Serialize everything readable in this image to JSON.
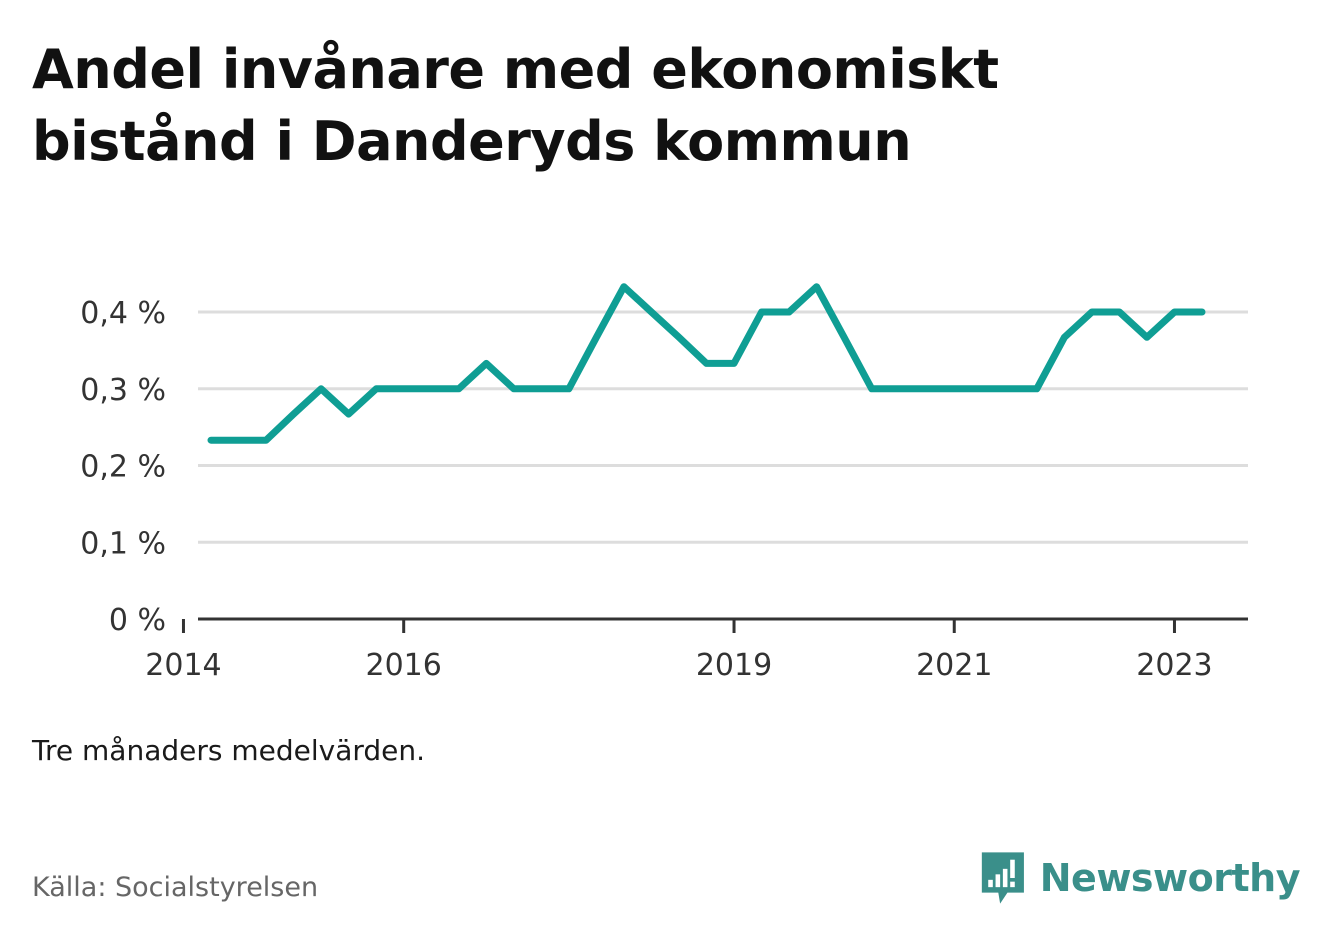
{
  "title": "Andel invånare med ekonomiskt bistånd i Danderyds kommun",
  "note": "Tre månaders medelvärden.",
  "source": "Källa: Socialstyrelsen",
  "brand": {
    "name": "Newsworthy"
  },
  "colors": {
    "line": "#0f9e94",
    "grid": "#dddddd",
    "axis": "#333333",
    "brand": "#3a8f8a"
  },
  "chart_data": {
    "type": "line",
    "title": "Andel invånare med ekonomiskt bistånd i Danderyds kommun",
    "xlabel": "",
    "ylabel": "",
    "y_unit": "%",
    "ylim": [
      0,
      0.4
    ],
    "yticks": [
      {
        "value": 0,
        "label": "0 %"
      },
      {
        "value": 0.1,
        "label": "0,1 %"
      },
      {
        "value": 0.2,
        "label": "0,2 %"
      },
      {
        "value": 0.3,
        "label": "0,3 %"
      },
      {
        "value": 0.4,
        "label": "0,4 %"
      }
    ],
    "xlim": [
      "2013-10",
      "2023-10"
    ],
    "xticks": [
      {
        "value": "2014-01",
        "label": "2014"
      },
      {
        "value": "2016-01",
        "label": "2016"
      },
      {
        "value": "2019-01",
        "label": "2019"
      },
      {
        "value": "2021-01",
        "label": "2021"
      },
      {
        "value": "2023-01",
        "label": "2023"
      }
    ],
    "grid": true,
    "series": [
      {
        "x": [
          "2014-04",
          "2014-07",
          "2014-10",
          "2015-01",
          "2015-04",
          "2015-07",
          "2015-10",
          "2016-01",
          "2016-04",
          "2016-07",
          "2016-10",
          "2017-01",
          "2017-04",
          "2017-07",
          "2017-10",
          "2018-01",
          "2018-04",
          "2018-07",
          "2018-10",
          "2019-01",
          "2019-04",
          "2019-07",
          "2019-10",
          "2020-01",
          "2020-04",
          "2020-07",
          "2020-10",
          "2021-01",
          "2021-04",
          "2021-07",
          "2021-10",
          "2022-01",
          "2022-04",
          "2022-07",
          "2022-10",
          "2023-01",
          "2023-04"
        ],
        "y": [
          0.233,
          0.233,
          0.233,
          0.267,
          0.3,
          0.267,
          0.3,
          0.3,
          0.3,
          0.3,
          0.333,
          0.3,
          0.3,
          0.3,
          0.367,
          0.433,
          0.4,
          0.367,
          0.333,
          0.333,
          0.4,
          0.4,
          0.433,
          0.367,
          0.3,
          0.3,
          0.3,
          0.3,
          0.3,
          0.3,
          0.3,
          0.367,
          0.4,
          0.4,
          0.367,
          0.4,
          0.4
        ]
      }
    ]
  }
}
